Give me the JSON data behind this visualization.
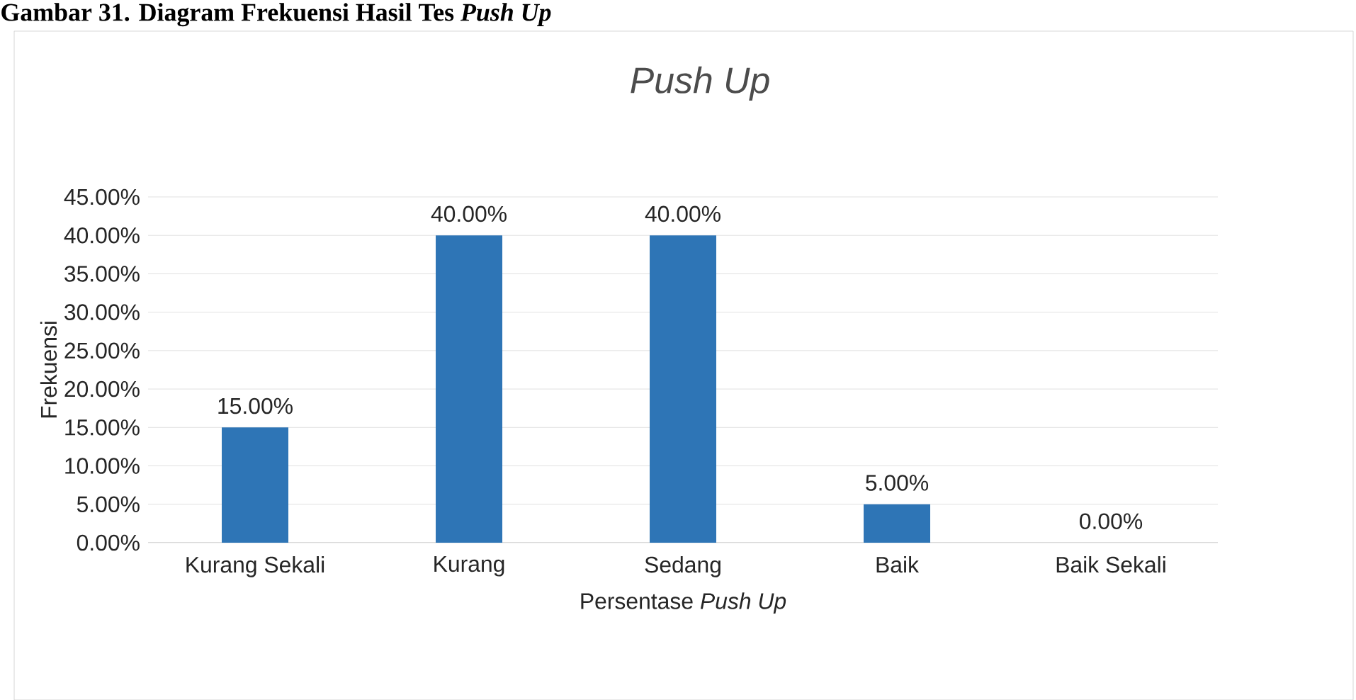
{
  "chart_data": {
    "type": "bar",
    "title": "Push Up",
    "ylabel": "Frekuensi",
    "xlabel": "Persentase *Push Up*",
    "annotations": [
      "Gambar 31. Diagram Frekuensi Hasil Tes *Push Up*"
    ],
    "categories": [
      "Kurang Sekali",
      "Kurang",
      "Sedang",
      "Baik",
      "Baik Sekali"
    ],
    "values": [
      15,
      40,
      40,
      5,
      0
    ],
    "value_labels": [
      "15.00%",
      "40.00%",
      "40.00%",
      "5.00%",
      "0.00%"
    ],
    "color": "#2e75b6",
    "ylim": [
      0,
      45
    ],
    "yticks": [
      {
        "value": 0,
        "label": "0.00%"
      },
      {
        "value": 5,
        "label": "5.00%"
      },
      {
        "value": 10,
        "label": "10.00%"
      },
      {
        "value": 15,
        "label": "15.00%"
      },
      {
        "value": 20,
        "label": "20.00%"
      },
      {
        "value": 25,
        "label": "25.00%"
      },
      {
        "value": 30,
        "label": "30.00%"
      },
      {
        "value": 35,
        "label": "35.00%"
      },
      {
        "value": 40,
        "label": "40.00%"
      },
      {
        "value": 45,
        "label": "45.00%"
      }
    ],
    "grid": "y"
  }
}
